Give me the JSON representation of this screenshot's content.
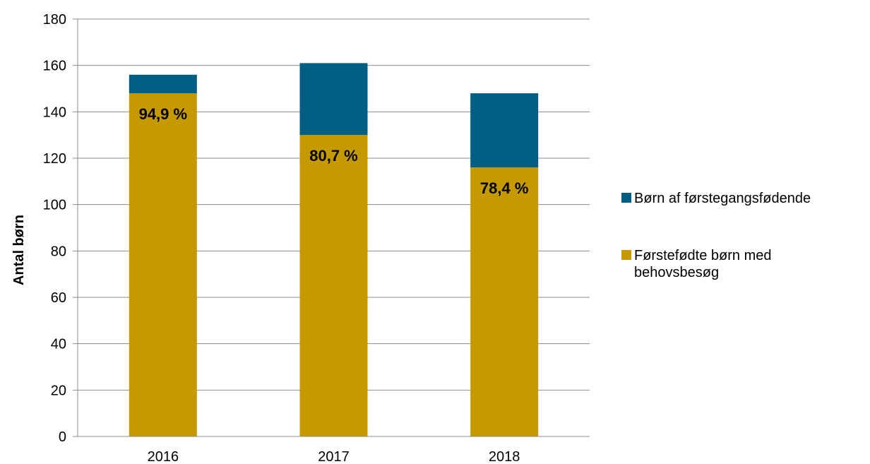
{
  "chart_data": {
    "type": "bar",
    "stacked": true,
    "categories": [
      "2016",
      "2017",
      "2018"
    ],
    "series": [
      {
        "name": "Førstefødte børn med behovsbesøg",
        "legend_lines": [
          "Førstefødte børn med",
          "behovsbesøg"
        ],
        "color": "#c49a00",
        "values": [
          148,
          130,
          116
        ]
      },
      {
        "name": "Børn af førstegangsfødende",
        "legend_lines": [
          "Børn af førstegangsfødende"
        ],
        "color": "#005e82",
        "values": [
          8,
          31,
          32
        ]
      }
    ],
    "data_labels": [
      "94,9 %",
      "80,7 %",
      "78,4 %"
    ],
    "ylabel": "Antal børn",
    "xlabel": "",
    "ylim": [
      0,
      180
    ],
    "yticks": [
      0,
      20,
      40,
      60,
      80,
      100,
      120,
      140,
      160,
      180
    ],
    "grid": true,
    "legend_position": "right"
  }
}
